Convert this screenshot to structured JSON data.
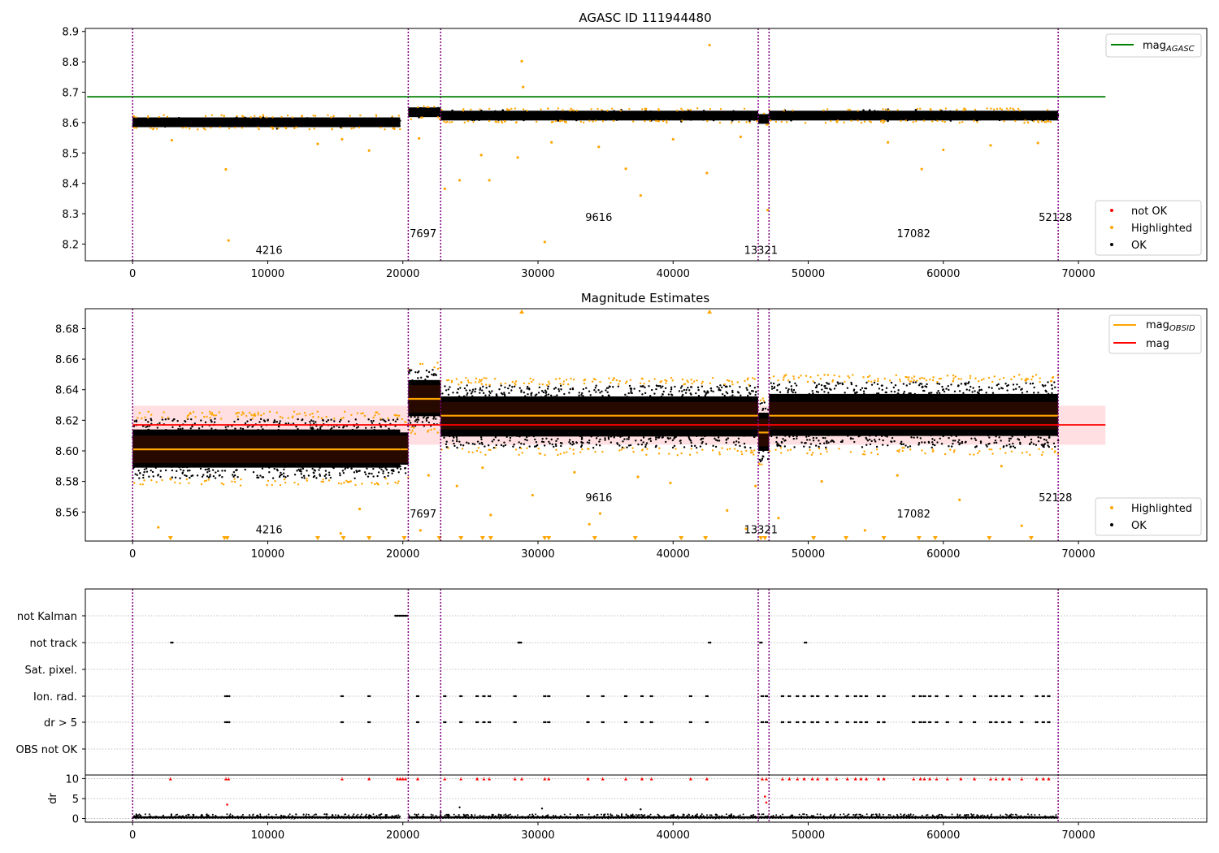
{
  "chart_data": [
    {
      "type": "scatter",
      "title": "AGASC ID 111944480",
      "xlim": [
        -3500,
        79500
      ],
      "ylim": [
        8.145,
        8.91
      ],
      "xticks": [
        0,
        10000,
        20000,
        30000,
        40000,
        50000,
        60000,
        70000
      ],
      "yticks": [
        8.2,
        8.3,
        8.4,
        8.5,
        8.6,
        8.7,
        8.8,
        8.9
      ],
      "obs_boundaries": [
        0,
        20400,
        22800,
        46300,
        47100,
        68500
      ],
      "obs_labels": [
        {
          "text": "4216",
          "x": 10100,
          "y": 8.168
        },
        {
          "text": "7697",
          "x": 21500,
          "y": 8.222
        },
        {
          "text": "9616",
          "x": 34500,
          "y": 8.276
        },
        {
          "text": "13321",
          "x": 46500,
          "y": 8.168
        },
        {
          "text": "17082",
          "x": 57800,
          "y": 8.222
        },
        {
          "text": "52128",
          "x": 68300,
          "y": 8.276
        }
      ],
      "reference_lines": [
        {
          "name": "mag_AGASC",
          "y": 8.685,
          "x": [
            0,
            72000
          ],
          "color": "#008000"
        }
      ],
      "ok_bands": [
        {
          "x": [
            0,
            19800
          ],
          "center": 8.601,
          "half_width": 0.016
        },
        {
          "x": [
            20400,
            22800
          ],
          "center": 8.634,
          "half_width": 0.016
        },
        {
          "x": [
            22800,
            46300
          ],
          "center": 8.623,
          "half_width": 0.016
        },
        {
          "x": [
            46300,
            47100
          ],
          "center": 8.612,
          "half_width": 0.016
        },
        {
          "x": [
            47100,
            68500
          ],
          "center": 8.623,
          "half_width": 0.016
        }
      ],
      "highlighted_points": [
        [
          6900,
          8.446
        ],
        [
          7100,
          8.212
        ],
        [
          28800,
          8.802
        ],
        [
          28900,
          8.717
        ],
        [
          30500,
          8.207
        ],
        [
          42700,
          8.855
        ],
        [
          24200,
          8.41
        ],
        [
          26400,
          8.41
        ],
        [
          23100,
          8.382
        ],
        [
          37600,
          8.36
        ],
        [
          36500,
          8.448
        ],
        [
          42500,
          8.434
        ],
        [
          47000,
          8.312
        ],
        [
          58400,
          8.447
        ],
        [
          28500,
          8.485
        ],
        [
          17500,
          8.508
        ],
        [
          13700,
          8.53
        ],
        [
          15500,
          8.545
        ],
        [
          2900,
          8.542
        ],
        [
          25800,
          8.493
        ],
        [
          31000,
          8.535
        ],
        [
          34500,
          8.52
        ],
        [
          40000,
          8.545
        ],
        [
          45000,
          8.553
        ],
        [
          55900,
          8.535
        ],
        [
          60000,
          8.51
        ],
        [
          63500,
          8.525
        ],
        [
          67000,
          8.533
        ],
        [
          21200,
          8.548
        ]
      ],
      "legend": [
        {
          "label": "mag",
          "sub": "AGASC",
          "color": "#008000"
        },
        {
          "label": "not OK",
          "color": "#ff0000"
        },
        {
          "label": "Highlighted",
          "color": "#ffa500"
        },
        {
          "label": "OK",
          "color": "#000000"
        }
      ]
    },
    {
      "type": "scatter",
      "title": "Magnitude Estimates",
      "xlim": [
        -3500,
        79500
      ],
      "ylim": [
        8.541,
        8.693
      ],
      "xticks": [
        0,
        10000,
        20000,
        30000,
        40000,
        50000,
        60000,
        70000
      ],
      "yticks": [
        8.56,
        8.58,
        8.6,
        8.62,
        8.64,
        8.66,
        8.68
      ],
      "obs_boundaries": [
        0,
        20400,
        22800,
        46300,
        47100,
        68500
      ],
      "obs_labels": [
        {
          "text": "4216",
          "x": 10100,
          "y": 8.546
        },
        {
          "text": "7697",
          "x": 21500,
          "y": 8.5565
        },
        {
          "text": "9616",
          "x": 34500,
          "y": 8.567
        },
        {
          "text": "13321",
          "x": 46500,
          "y": 8.546
        },
        {
          "text": "17082",
          "x": 57800,
          "y": 8.5565
        },
        {
          "text": "52128",
          "x": 68300,
          "y": 8.567
        }
      ],
      "mag": {
        "y": 8.617,
        "band": [
          8.604,
          8.6295
        ],
        "x": [
          0,
          72000
        ],
        "color": "#ff0000"
      },
      "segments": [
        {
          "x": [
            0,
            19800
          ],
          "mag_obsid": 8.601,
          "band": [
            8.592,
            8.61
          ],
          "ok_range": [
            8.582,
            8.621
          ]
        },
        {
          "x": [
            19800,
            20400
          ],
          "mag_obsid": 8.601,
          "band": [
            8.592,
            8.61
          ],
          "ok_range": [
            8.585,
            8.618
          ]
        },
        {
          "x": [
            20400,
            22800
          ],
          "mag_obsid": 8.634,
          "band": [
            8.625,
            8.643
          ],
          "ok_range": [
            8.616,
            8.653
          ]
        },
        {
          "x": [
            22800,
            46300
          ],
          "mag_obsid": 8.623,
          "band": [
            8.614,
            8.632
          ],
          "ok_range": [
            8.602,
            8.643
          ]
        },
        {
          "x": [
            46300,
            47100
          ],
          "mag_obsid": 8.612,
          "band": [
            8.603,
            8.621
          ],
          "ok_range": [
            8.593,
            8.632
          ]
        },
        {
          "x": [
            47100,
            68500
          ],
          "mag_obsid": 8.623,
          "band": [
            8.614,
            8.632
          ],
          "ok_range": [
            8.602,
            8.645
          ]
        }
      ],
      "highlighted_points": [
        [
          1900,
          8.55
        ],
        [
          16800,
          8.562
        ],
        [
          21300,
          8.548
        ],
        [
          26500,
          8.558
        ],
        [
          24000,
          8.577
        ],
        [
          29600,
          8.571
        ],
        [
          34600,
          8.559
        ],
        [
          33800,
          8.552
        ],
        [
          44000,
          8.561
        ],
        [
          45400,
          8.549
        ],
        [
          46100,
          8.577
        ],
        [
          51000,
          8.58
        ],
        [
          54200,
          8.548
        ],
        [
          61200,
          8.568
        ],
        [
          65800,
          8.551
        ],
        [
          25900,
          8.589
        ],
        [
          32700,
          8.586
        ],
        [
          37400,
          8.583
        ],
        [
          39800,
          8.579
        ],
        [
          56600,
          8.584
        ],
        [
          64300,
          8.59
        ],
        [
          15400,
          8.546
        ],
        [
          21900,
          8.584
        ],
        [
          47800,
          8.556
        ]
      ],
      "off_scale_high": [
        28800,
        42700
      ],
      "off_scale_low": [
        2800,
        6800,
        7000,
        13700,
        15600,
        17500,
        20100,
        22700,
        24300,
        25900,
        26500,
        30500,
        30800,
        34200,
        37200,
        40600,
        42400,
        46500,
        46800,
        50400,
        52800,
        55600,
        58200,
        59400,
        63400,
        66500
      ],
      "legend": [
        {
          "label": "mag",
          "sub": "OBSID",
          "color": "#ffa500"
        },
        {
          "label": "mag",
          "color": "#ff0000"
        },
        {
          "label": "Highlighted",
          "color": "#ffa500"
        },
        {
          "label": "OK",
          "color": "#000000"
        }
      ]
    },
    {
      "type": "scatter",
      "title": "",
      "ylabel": "dr",
      "xlim": [
        -3500,
        79500
      ],
      "xticks": [
        0,
        10000,
        20000,
        30000,
        40000,
        50000,
        60000,
        70000
      ],
      "flag_rows": [
        "not Kalman",
        "not track",
        "Sat. pixel.",
        "Ion. rad.",
        "dr > 5",
        "OBS not OK"
      ],
      "dr_yticks": [
        0,
        5,
        10
      ],
      "dr_ylim": [
        -0.5,
        10.5
      ],
      "obs_boundaries": [
        0,
        20400,
        22800,
        46300,
        47100,
        68500
      ],
      "flags": {
        "not Kalman": [
          19500,
          19700,
          19900,
          20100,
          20300
        ],
        "not track": [
          2900,
          28600,
          28700,
          42700,
          46500,
          49800
        ],
        "Sat. pixel.": [],
        "Ion. rad.": [
          6900,
          7100,
          15500,
          17500,
          21100,
          23100,
          24300,
          25500,
          26000,
          26400,
          28300,
          30500,
          30800,
          33700,
          34800,
          36500,
          37700,
          38400,
          41300,
          42500,
          46600,
          46900,
          48100,
          48600,
          49200,
          49700,
          50300,
          50700,
          51400,
          52100,
          52900,
          53500,
          53900,
          54300,
          55200,
          55600,
          57800,
          58300,
          58600,
          59000,
          59500,
          60300,
          61300,
          62300,
          63500,
          63900,
          64400,
          64900,
          65800,
          66900,
          67400,
          67800
        ],
        "dr > 5": [
          6900,
          7100,
          15500,
          17500,
          21100,
          23100,
          24300,
          25500,
          26000,
          26400,
          28300,
          30500,
          30800,
          33700,
          34800,
          36500,
          37700,
          38400,
          41300,
          42500,
          46600,
          46900,
          48100,
          48600,
          49200,
          49700,
          50300,
          50700,
          51400,
          52100,
          52900,
          53500,
          53900,
          54300,
          55200,
          55600,
          57800,
          58300,
          58600,
          59000,
          59500,
          60300,
          61300,
          62300,
          63500,
          63900,
          64400,
          64900,
          65800,
          66900,
          67400,
          67800
        ],
        "OBS not OK": []
      },
      "dr_red_at_10": [
        2800,
        6900,
        7100,
        15500,
        17500,
        19600,
        19800,
        20000,
        20200,
        21100,
        23100,
        24300,
        25500,
        26000,
        26400,
        28300,
        28800,
        30500,
        30800,
        33700,
        34800,
        36500,
        37700,
        38400,
        41300,
        42500,
        46600,
        46900,
        48100,
        48600,
        49200,
        49700,
        50300,
        50700,
        51400,
        52100,
        52900,
        53500,
        53900,
        54300,
        55200,
        55600,
        57800,
        58300,
        58600,
        59000,
        59500,
        60300,
        61300,
        62300,
        63500,
        63900,
        64400,
        64900,
        65800,
        66900,
        67400,
        67800
      ],
      "dr_red_other": [
        [
          7000,
          3.5
        ],
        [
          46800,
          5.5
        ],
        [
          46900,
          4.0
        ]
      ],
      "dr_black_points": [
        [
          24200,
          2.8
        ],
        [
          30300,
          2.5
        ],
        [
          37600,
          2.3
        ],
        [
          22800,
          1.6
        ]
      ]
    }
  ]
}
